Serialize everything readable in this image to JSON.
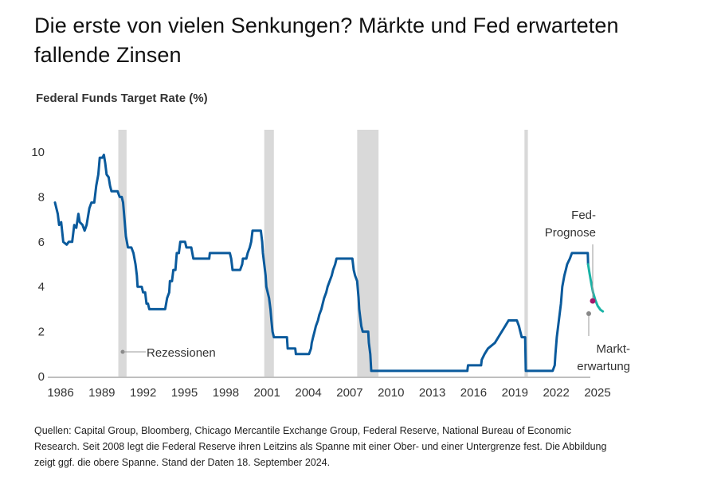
{
  "header": {
    "title": "Die erste von vielen Senkungen? Märkte und Fed erwarteten fallende Zinsen",
    "subtitle": "Federal Funds Target Rate (%)"
  },
  "footer": {
    "note": "Quellen: Capital Group, Bloomberg, Chicago Mercantile Exchange Group, Federal Reserve, National Bureau of Economic Research. Seit 2008 legt die Federal Reserve ihren Leitzins als Spanne mit einer Ober- und einer Untergrenze fest. Die Abbildung zeigt ggf. die obere Spanne. Stand der Daten 18. September 2024."
  },
  "chart_data": {
    "type": "line",
    "title": "Die erste von vielen Senkungen? Märkte und Fed erwarteten fallende Zinsen",
    "ylabel": "Federal Funds Target Rate (%)",
    "xlabel": "",
    "xlim": [
      1986,
      2025.3
    ],
    "ylim": [
      0,
      10.5
    ],
    "x_ticks": [
      1986,
      1989,
      1992,
      1995,
      1998,
      2001,
      2004,
      2007,
      2010,
      2013,
      2016,
      2019,
      2022,
      2025
    ],
    "y_ticks": [
      0,
      2,
      4,
      6,
      8,
      10
    ],
    "grid": false,
    "colors": {
      "historical": "#0a5a9c",
      "market_expectation": "#1ab3a6",
      "fed_projection": "#a3196b",
      "recession": "#d9d9d9",
      "axis": "#999999",
      "annotation": "#888888"
    },
    "recessions": [
      {
        "start": 1990.6,
        "end": 1991.2
      },
      {
        "start": 2001.2,
        "end": 2001.9
      },
      {
        "start": 2007.95,
        "end": 2009.5
      },
      {
        "start": 2020.1,
        "end": 2020.35
      }
    ],
    "series": [
      {
        "name": "Federal Funds Target Rate",
        "points": [
          [
            1986.0,
            7.75
          ],
          [
            1986.2,
            7.25
          ],
          [
            1986.3,
            6.75
          ],
          [
            1986.45,
            6.875
          ],
          [
            1986.6,
            6.0
          ],
          [
            1986.85,
            5.875
          ],
          [
            1987.0,
            6.0
          ],
          [
            1987.25,
            6.0
          ],
          [
            1987.4,
            6.75
          ],
          [
            1987.55,
            6.625
          ],
          [
            1987.7,
            7.25
          ],
          [
            1987.8,
            6.875
          ],
          [
            1988.0,
            6.75
          ],
          [
            1988.15,
            6.5
          ],
          [
            1988.3,
            6.75
          ],
          [
            1988.5,
            7.5
          ],
          [
            1988.65,
            7.75
          ],
          [
            1988.85,
            7.75
          ],
          [
            1989.0,
            8.5
          ],
          [
            1989.15,
            9.0
          ],
          [
            1989.25,
            9.75
          ],
          [
            1989.45,
            9.75
          ],
          [
            1989.55,
            9.875
          ],
          [
            1989.65,
            9.5
          ],
          [
            1989.75,
            9.0
          ],
          [
            1989.9,
            8.875
          ],
          [
            1990.0,
            8.5
          ],
          [
            1990.1,
            8.25
          ],
          [
            1990.55,
            8.25
          ],
          [
            1990.7,
            8.0
          ],
          [
            1990.85,
            8.0
          ],
          [
            1990.95,
            7.75
          ],
          [
            1991.05,
            7.0
          ],
          [
            1991.15,
            6.25
          ],
          [
            1991.3,
            5.75
          ],
          [
            1991.55,
            5.75
          ],
          [
            1991.7,
            5.5
          ],
          [
            1991.85,
            5.0
          ],
          [
            1991.95,
            4.5
          ],
          [
            1992.0,
            4.0
          ],
          [
            1992.3,
            4.0
          ],
          [
            1992.4,
            3.75
          ],
          [
            1992.55,
            3.75
          ],
          [
            1992.65,
            3.25
          ],
          [
            1992.75,
            3.25
          ],
          [
            1992.85,
            3.0
          ],
          [
            1994.0,
            3.0
          ],
          [
            1994.15,
            3.5
          ],
          [
            1994.3,
            3.75
          ],
          [
            1994.35,
            4.25
          ],
          [
            1994.5,
            4.25
          ],
          [
            1994.6,
            4.75
          ],
          [
            1994.75,
            4.75
          ],
          [
            1994.85,
            5.5
          ],
          [
            1995.0,
            5.5
          ],
          [
            1995.1,
            6.0
          ],
          [
            1995.45,
            6.0
          ],
          [
            1995.55,
            5.75
          ],
          [
            1995.9,
            5.75
          ],
          [
            1996.05,
            5.25
          ],
          [
            1997.2,
            5.25
          ],
          [
            1997.25,
            5.5
          ],
          [
            1998.7,
            5.5
          ],
          [
            1998.8,
            5.25
          ],
          [
            1998.9,
            4.75
          ],
          [
            1999.45,
            4.75
          ],
          [
            1999.6,
            5.0
          ],
          [
            1999.65,
            5.25
          ],
          [
            1999.9,
            5.25
          ],
          [
            2000.0,
            5.5
          ],
          [
            2000.15,
            5.75
          ],
          [
            2000.25,
            6.0
          ],
          [
            2000.35,
            6.5
          ],
          [
            2000.95,
            6.5
          ],
          [
            2001.05,
            6.0
          ],
          [
            2001.1,
            5.5
          ],
          [
            2001.2,
            5.0
          ],
          [
            2001.3,
            4.5
          ],
          [
            2001.35,
            4.0
          ],
          [
            2001.45,
            3.75
          ],
          [
            2001.55,
            3.5
          ],
          [
            2001.65,
            3.0
          ],
          [
            2001.72,
            2.5
          ],
          [
            2001.8,
            2.0
          ],
          [
            2001.9,
            1.75
          ],
          [
            2002.85,
            1.75
          ],
          [
            2002.9,
            1.25
          ],
          [
            2003.45,
            1.25
          ],
          [
            2003.5,
            1.0
          ],
          [
            2004.45,
            1.0
          ],
          [
            2004.6,
            1.25
          ],
          [
            2004.65,
            1.5
          ],
          [
            2004.75,
            1.75
          ],
          [
            2004.85,
            2.0
          ],
          [
            2004.95,
            2.25
          ],
          [
            2005.1,
            2.5
          ],
          [
            2005.2,
            2.75
          ],
          [
            2005.35,
            3.0
          ],
          [
            2005.45,
            3.25
          ],
          [
            2005.55,
            3.5
          ],
          [
            2005.7,
            3.75
          ],
          [
            2005.8,
            4.0
          ],
          [
            2005.95,
            4.25
          ],
          [
            2006.1,
            4.5
          ],
          [
            2006.2,
            4.75
          ],
          [
            2006.35,
            5.0
          ],
          [
            2006.45,
            5.25
          ],
          [
            2007.6,
            5.25
          ],
          [
            2007.7,
            4.75
          ],
          [
            2007.8,
            4.5
          ],
          [
            2007.95,
            4.25
          ],
          [
            2008.05,
            3.5
          ],
          [
            2008.1,
            3.0
          ],
          [
            2008.25,
            2.25
          ],
          [
            2008.35,
            2.0
          ],
          [
            2008.75,
            2.0
          ],
          [
            2008.8,
            1.5
          ],
          [
            2008.9,
            1.0
          ],
          [
            2008.97,
            0.25
          ],
          [
            2015.95,
            0.25
          ],
          [
            2016.0,
            0.5
          ],
          [
            2016.95,
            0.5
          ],
          [
            2017.0,
            0.75
          ],
          [
            2017.2,
            1.0
          ],
          [
            2017.45,
            1.25
          ],
          [
            2017.95,
            1.5
          ],
          [
            2018.2,
            1.75
          ],
          [
            2018.45,
            2.0
          ],
          [
            2018.7,
            2.25
          ],
          [
            2018.95,
            2.5
          ],
          [
            2019.55,
            2.5
          ],
          [
            2019.7,
            2.25
          ],
          [
            2019.8,
            2.0
          ],
          [
            2019.9,
            1.75
          ],
          [
            2020.15,
            1.75
          ],
          [
            2020.2,
            0.25
          ],
          [
            2022.15,
            0.25
          ],
          [
            2022.3,
            0.5
          ],
          [
            2022.35,
            1.0
          ],
          [
            2022.45,
            1.75
          ],
          [
            2022.6,
            2.5
          ],
          [
            2022.75,
            3.25
          ],
          [
            2022.85,
            4.0
          ],
          [
            2023.0,
            4.5
          ],
          [
            2023.1,
            4.75
          ],
          [
            2023.2,
            5.0
          ],
          [
            2023.4,
            5.25
          ],
          [
            2023.55,
            5.5
          ],
          [
            2024.7,
            5.5
          ],
          [
            2024.72,
            5.0
          ]
        ]
      },
      {
        "name": "Markterwartung",
        "points": [
          [
            2024.72,
            5.0
          ],
          [
            2024.85,
            4.6
          ],
          [
            2025.0,
            4.15
          ],
          [
            2025.15,
            3.75
          ],
          [
            2025.35,
            3.4
          ],
          [
            2025.55,
            3.15
          ],
          [
            2025.8,
            2.97
          ],
          [
            2026.0,
            2.9
          ]
        ]
      }
    ],
    "markers": [
      {
        "name": "Fed-Prognose",
        "x": 2026.05,
        "y": 3.4
      },
      {
        "name": "Markterwartung",
        "x": 2025.9,
        "y": 2.9
      }
    ],
    "annotations": [
      {
        "text": "Rezessionen",
        "target": "recession"
      },
      {
        "text_lines": [
          "Fed-",
          "Prognose"
        ],
        "target": "fed_projection"
      },
      {
        "text_lines": [
          "Markt-",
          "erwartung"
        ],
        "target": "market_expectation"
      }
    ]
  }
}
